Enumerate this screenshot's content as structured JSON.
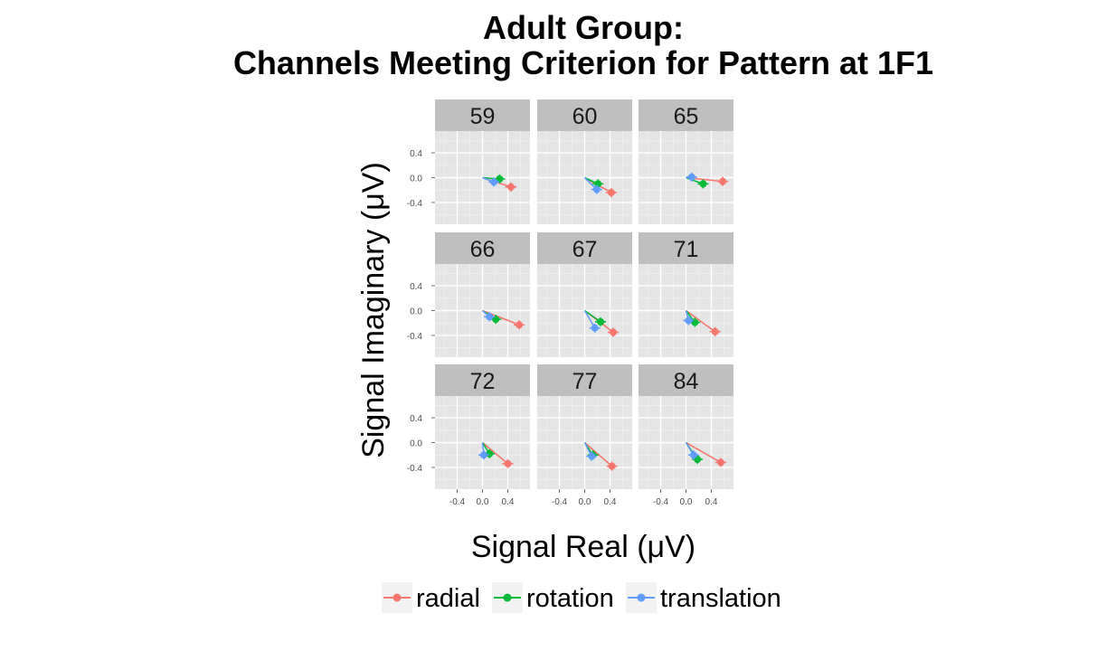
{
  "chart_data": {
    "type": "line",
    "title": "Adult Group:\nChannels Meeting Criterion for Pattern at 1F1",
    "xlabel": "Signal Real (μV)",
    "ylabel": "Signal Imaginary (μV)",
    "xlim": [
      -0.75,
      0.75
    ],
    "ylim": [
      -0.75,
      0.75
    ],
    "xticks": [
      -0.4,
      0.0,
      0.4
    ],
    "xtick_labels": [
      "-0.4",
      "0.0",
      "0.4"
    ],
    "yticks": [
      0.4,
      0.0,
      -0.4
    ],
    "ytick_labels": [
      "0.4",
      "0.0",
      "-0.4"
    ],
    "grid": true,
    "legend_position": "bottom",
    "series_colors": {
      "radial": "#F8766D",
      "rotation": "#00BA38",
      "translation": "#619CFF"
    },
    "panels": [
      {
        "label": "59",
        "radial": [
          0.45,
          -0.15
        ],
        "rotation": [
          0.27,
          -0.02
        ],
        "translation": [
          0.18,
          -0.07
        ]
      },
      {
        "label": "60",
        "radial": [
          0.42,
          -0.24
        ],
        "rotation": [
          0.21,
          -0.1
        ],
        "translation": [
          0.19,
          -0.19
        ]
      },
      {
        "label": "65",
        "radial": [
          0.58,
          -0.06
        ],
        "rotation": [
          0.27,
          -0.1
        ],
        "translation": [
          0.09,
          0.01
        ]
      },
      {
        "label": "66",
        "radial": [
          0.58,
          -0.23
        ],
        "rotation": [
          0.21,
          -0.14
        ],
        "translation": [
          0.11,
          -0.1
        ]
      },
      {
        "label": "67",
        "radial": [
          0.45,
          -0.35
        ],
        "rotation": [
          0.25,
          -0.18
        ],
        "translation": [
          0.16,
          -0.28
        ]
      },
      {
        "label": "71",
        "radial": [
          0.46,
          -0.34
        ],
        "rotation": [
          0.14,
          -0.19
        ],
        "translation": [
          0.04,
          -0.16
        ]
      },
      {
        "label": "72",
        "radial": [
          0.4,
          -0.34
        ],
        "rotation": [
          0.11,
          -0.18
        ],
        "translation": [
          0.02,
          -0.2
        ]
      },
      {
        "label": "77",
        "radial": [
          0.43,
          -0.38
        ],
        "rotation": [
          0.13,
          -0.2
        ],
        "translation": [
          0.11,
          -0.22
        ]
      },
      {
        "label": "84",
        "radial": [
          0.55,
          -0.32
        ],
        "rotation": [
          0.18,
          -0.27
        ],
        "translation": [
          0.12,
          -0.2
        ]
      }
    ],
    "legend": [
      "radial",
      "rotation",
      "translation"
    ]
  }
}
